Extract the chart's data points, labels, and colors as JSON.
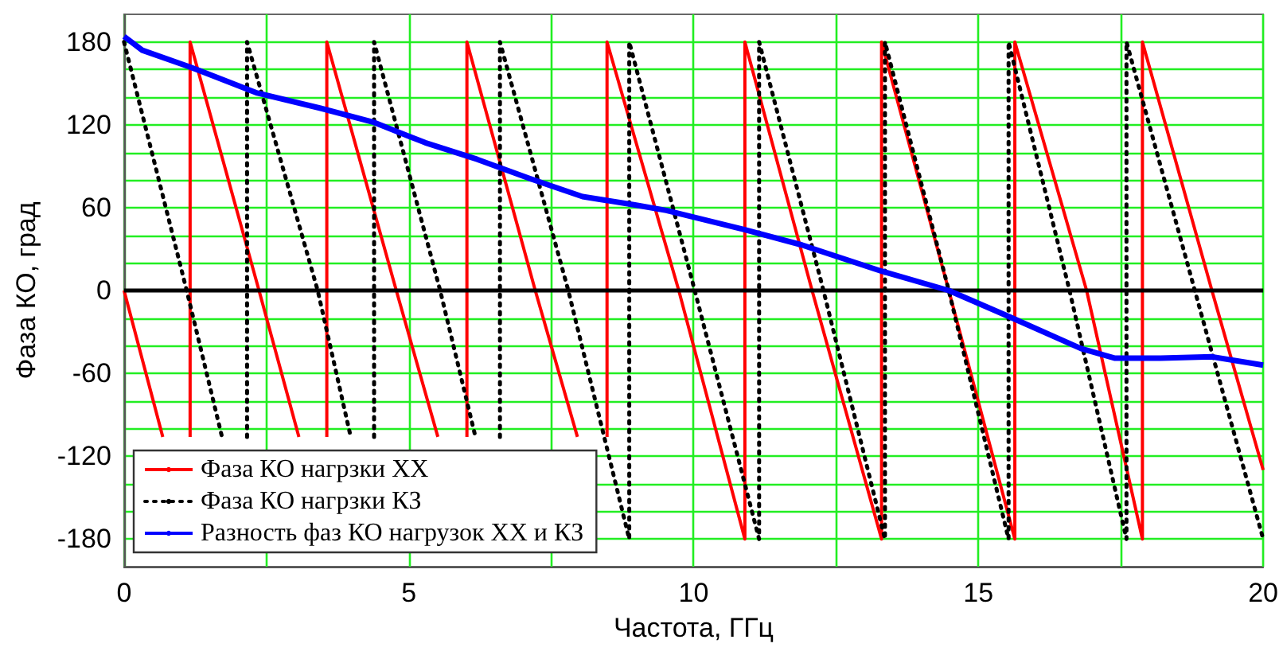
{
  "chart_data": {
    "type": "line",
    "xlabel": "Частота, ГГц",
    "ylabel": "Фаза КО, град",
    "xlim": [
      0,
      20
    ],
    "xticks": [
      0,
      {
        "value": 2.5,
        "label": null
      },
      5,
      {
        "value": 7.5,
        "label": null
      },
      10,
      {
        "value": 12.5,
        "label": null
      },
      15,
      {
        "value": 17.5,
        "label": null
      },
      20
    ],
    "ylim": [
      -200,
      200
    ],
    "yticks": [
      -180,
      {
        "value": -160,
        "label": null
      },
      {
        "value": -140,
        "label": null
      },
      -120,
      {
        "value": -100,
        "label": null
      },
      {
        "value": -80,
        "label": null
      },
      -60,
      {
        "value": -40,
        "label": null
      },
      {
        "value": -20,
        "label": null
      },
      0,
      {
        "value": 20,
        "label": null
      },
      {
        "value": 40,
        "label": null
      },
      60,
      {
        "value": 80,
        "label": null
      },
      {
        "value": 100,
        "label": null
      },
      120,
      {
        "value": 140,
        "label": null
      },
      {
        "value": 160,
        "label": null
      },
      180
    ],
    "grid": true,
    "legend": "bottom left",
    "marker": "none",
    "ref_lines": [
      {
        "axis": "y",
        "value": 0,
        "color": "#000000"
      }
    ],
    "series": [
      {
        "name": "Фаза КО нагрзки ХХ",
        "color": "#ff0000",
        "line_style": "solid",
        "x": [
          0,
          0.68,
          0.9,
          1.16,
          1.16,
          2.37,
          3.07,
          3.3,
          3.56,
          3.56,
          4.78,
          5.51,
          5.8,
          6.02,
          6.02,
          7.22,
          7.96,
          8.2,
          8.48,
          8.48,
          9.74,
          10.9,
          10.9,
          12.08,
          13.3,
          13.3,
          14.48,
          15.64,
          15.64,
          16.9,
          17.88,
          17.88,
          19.1,
          20
        ],
        "values": [
          0,
          -106,
          null,
          -106,
          180,
          0,
          -106,
          null,
          -106,
          180,
          0,
          -106,
          null,
          -106,
          180,
          0,
          -106,
          null,
          -106,
          180,
          0,
          -180,
          180,
          0,
          -180,
          180,
          0,
          -180,
          180,
          0,
          -180,
          180,
          0,
          -130
        ]
      },
      {
        "name": "Фаза КО нагрзки КЗ",
        "color": "#000000",
        "line_style": "dotted",
        "x": [
          0,
          1.1,
          1.72,
          1.9,
          2.16,
          2.16,
          3.4,
          3.98,
          4.2,
          4.39,
          4.39,
          5.55,
          6.17,
          6.4,
          6.6,
          6.6,
          7.8,
          8.87,
          8.87,
          10.02,
          11.15,
          11.15,
          12.28,
          13.36,
          13.36,
          14.48,
          15.53,
          15.53,
          16.6,
          17.6,
          17.6,
          18.8,
          20
        ],
        "values": [
          180,
          0,
          -106,
          null,
          -106,
          180,
          0,
          -106,
          null,
          -106,
          180,
          0,
          -106,
          null,
          -106,
          180,
          0,
          -180,
          180,
          0,
          -180,
          180,
          0,
          -180,
          180,
          0,
          -180,
          180,
          0,
          -180,
          180,
          0,
          -180
        ]
      },
      {
        "name": "Разность фаз КО нагрузок ХХ и КЗ",
        "color": "#0000ff",
        "line_style": "solid",
        "x": [
          0,
          0.32,
          1.15,
          2.34,
          3.45,
          4.37,
          5.29,
          6.2,
          7.13,
          8.05,
          8.97,
          9.52,
          10.9,
          11.9,
          13.3,
          14.48,
          15.6,
          16.8,
          17.4,
          18.2,
          19.1,
          20
        ],
        "values": [
          184,
          174,
          162,
          143,
          132,
          122,
          107,
          95,
          81,
          68,
          62,
          58,
          44,
          33,
          14,
          0,
          -20,
          -42,
          -49,
          -49,
          -48,
          -54
        ]
      }
    ]
  }
}
